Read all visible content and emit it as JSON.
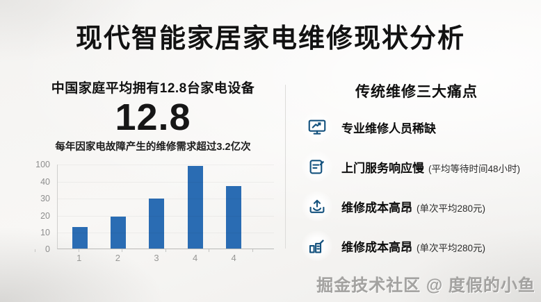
{
  "title": "现代智能家居家电维修现状分析",
  "left": {
    "headline": "中国家庭平均拥有12.8台家电设备",
    "big_number": "12.8",
    "subtext": "每年因家电故障产生的维修需求超过3.2亿次"
  },
  "chart_data": {
    "type": "bar",
    "title": "",
    "xlabel": "",
    "ylabel": "",
    "categories": [
      "1",
      "2",
      "3",
      "4",
      "4"
    ],
    "values": [
      13,
      19,
      29,
      97,
      37
    ],
    "bar_heights_pct_of_plot": [
      26,
      38,
      59,
      98,
      74
    ],
    "y_tick_labels_top_to_bottom": [
      "100",
      "40",
      "30",
      "20",
      "10",
      "0"
    ],
    "axis_note": "tick labels evenly spaced as printed (non-linear scale)",
    "grid": "faint horizontal gridlines",
    "legend": "none"
  },
  "right": {
    "header": "传统维修三大痛点",
    "items": [
      {
        "icon": "monitor-chart-icon",
        "label": "专业维修人员稀缺",
        "detail": ""
      },
      {
        "icon": "document-edit-icon",
        "label": "上门服务响应慢",
        "detail": "(平均等待时间48小时)"
      },
      {
        "icon": "upload-tray-icon",
        "label": "维修成本高昂",
        "detail": "(单次平均280元)"
      },
      {
        "icon": "building-edit-icon",
        "label": "维修成本高昂",
        "detail": "(单次平均280元)"
      }
    ]
  },
  "watermark": "掘金技术社区 @ 度假的小鱼",
  "colors": {
    "bar": "#2a6cb3",
    "icon": "#14527e",
    "text": "#121212",
    "axis_label": "#8d8d8d",
    "watermark": "#a3a2a0"
  }
}
